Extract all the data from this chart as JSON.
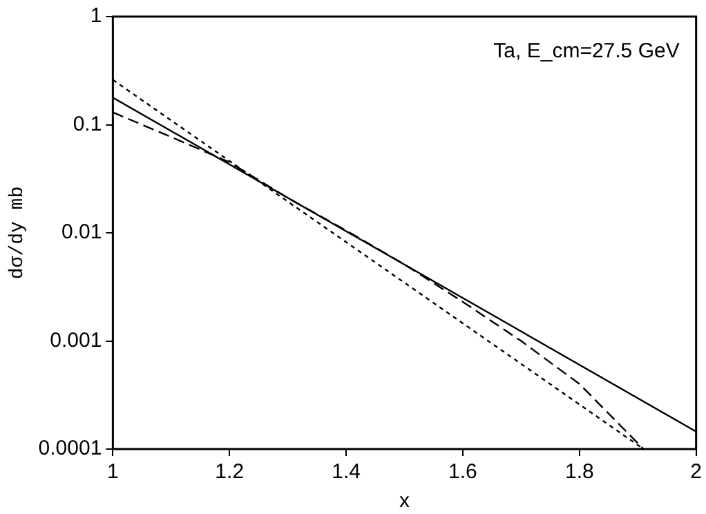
{
  "chart_data": {
    "type": "line",
    "xlabel": "x",
    "ylabel": "dσ/dy mb",
    "annotations": [
      "Ta, E_cm=27.5 GeV"
    ],
    "log": "y",
    "grid": false,
    "legend": false,
    "marker": "none",
    "xlim": [
      1,
      2
    ],
    "xticks": [
      1,
      1.2,
      1.4,
      1.6,
      1.8,
      2
    ],
    "ylim": [
      0.0001,
      1
    ],
    "yticks": [
      0.0001,
      0.001,
      0.01,
      0.1,
      1
    ],
    "series": [
      {
        "color": "#000000",
        "line_style": "solid",
        "x": [
          1,
          2
        ],
        "values": [
          0.178,
          0.000145
        ]
      },
      {
        "color": "#000000",
        "line_style": "dashed",
        "x": [
          1,
          1.1,
          1.2,
          1.3,
          1.4,
          1.5,
          1.6,
          1.7,
          1.8,
          1.91
        ],
        "values": [
          0.13,
          0.077,
          0.045,
          0.021,
          0.0105,
          0.0051,
          0.0023,
          0.001,
          0.0004,
          0.0001
        ]
      },
      {
        "color": "#000000",
        "line_style": "dotted",
        "x": [
          1,
          1.91
        ],
        "values": [
          0.26,
          0.0001
        ]
      }
    ]
  }
}
